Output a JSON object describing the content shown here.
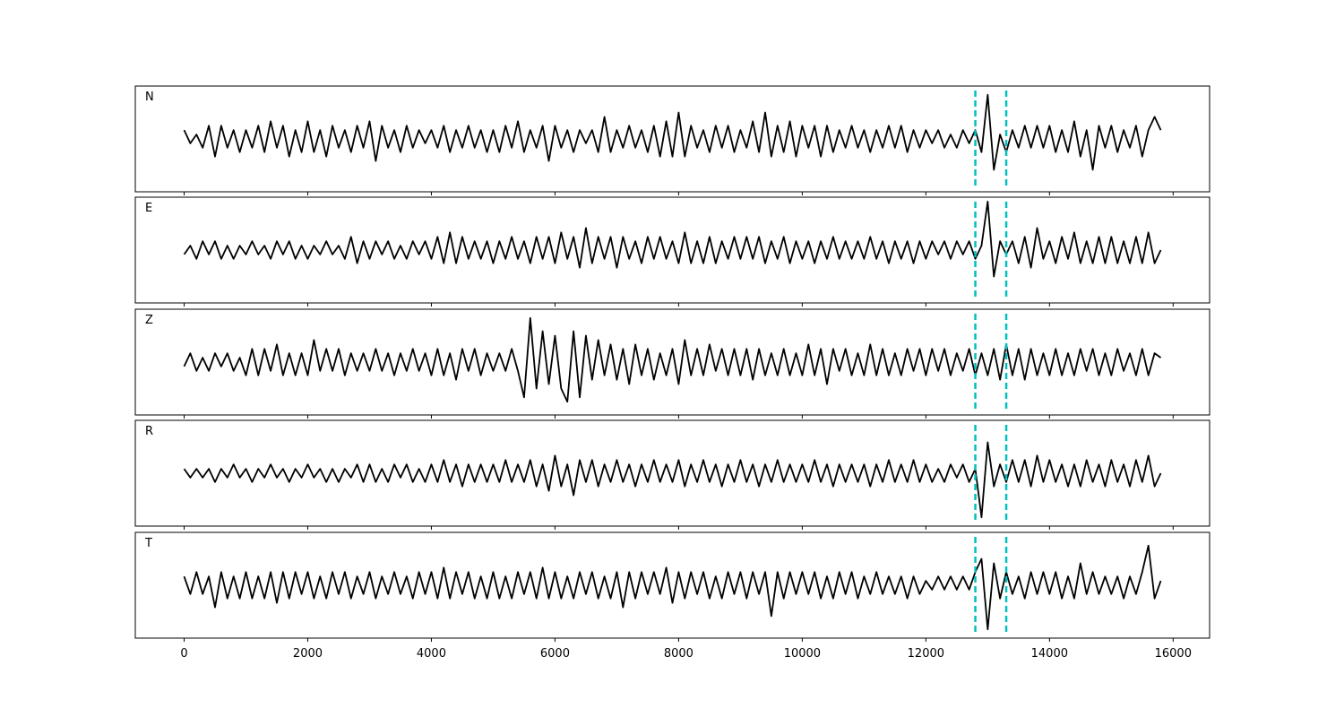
{
  "chart_data": {
    "type": "line",
    "x": [
      0,
      100,
      200,
      300,
      400,
      500,
      600,
      700,
      800,
      900,
      1000,
      1100,
      1200,
      1300,
      1400,
      1500,
      1600,
      1700,
      1800,
      1900,
      2000,
      2100,
      2200,
      2300,
      2400,
      2500,
      2600,
      2700,
      2800,
      2900,
      3000,
      3100,
      3200,
      3300,
      3400,
      3500,
      3600,
      3700,
      3800,
      3900,
      4000,
      4100,
      4200,
      4300,
      4400,
      4500,
      4600,
      4700,
      4800,
      4900,
      5000,
      5100,
      5200,
      5300,
      5400,
      5500,
      5600,
      5700,
      5800,
      5900,
      6000,
      6100,
      6200,
      6300,
      6400,
      6500,
      6600,
      6700,
      6800,
      6900,
      7000,
      7100,
      7200,
      7300,
      7400,
      7500,
      7600,
      7700,
      7800,
      7900,
      8000,
      8100,
      8200,
      8300,
      8400,
      8500,
      8600,
      8700,
      8800,
      8900,
      9000,
      9100,
      9200,
      9300,
      9400,
      9500,
      9600,
      9700,
      9800,
      9900,
      10000,
      10100,
      10200,
      10300,
      10400,
      10500,
      10600,
      10700,
      10800,
      10900,
      11000,
      11100,
      11200,
      11300,
      11400,
      11500,
      11600,
      11700,
      11800,
      11900,
      12000,
      12100,
      12200,
      12300,
      12400,
      12500,
      12600,
      12700,
      12800,
      12900,
      13000,
      13100,
      13200,
      13300,
      13400,
      13500,
      13600,
      13700,
      13800,
      13900,
      14000,
      14100,
      14200,
      14300,
      14400,
      14500,
      14600,
      14700,
      14800,
      14900,
      15000,
      15100,
      15200,
      15300,
      15400,
      15500,
      15600,
      15700,
      15800
    ],
    "series": [
      {
        "name": "N",
        "color": "#000000",
        "values": [
          0.2,
          -0.1,
          0.1,
          -0.2,
          0.3,
          -0.4,
          0.3,
          -0.2,
          0.2,
          -0.3,
          0.2,
          -0.2,
          0.3,
          -0.3,
          0.4,
          -0.2,
          0.3,
          -0.4,
          0.2,
          -0.3,
          0.4,
          -0.3,
          0.2,
          -0.4,
          0.3,
          -0.2,
          0.2,
          -0.3,
          0.3,
          -0.2,
          0.4,
          -0.5,
          0.3,
          -0.2,
          0.2,
          -0.3,
          0.3,
          -0.2,
          0.2,
          -0.1,
          0.2,
          -0.2,
          0.3,
          -0.3,
          0.2,
          -0.2,
          0.3,
          -0.2,
          0.2,
          -0.3,
          0.2,
          -0.3,
          0.3,
          -0.2,
          0.4,
          -0.3,
          0.2,
          -0.2,
          0.3,
          -0.5,
          0.3,
          -0.2,
          0.2,
          -0.3,
          0.2,
          -0.1,
          0.2,
          -0.3,
          0.5,
          -0.3,
          0.2,
          -0.2,
          0.3,
          -0.2,
          0.2,
          -0.3,
          0.3,
          -0.4,
          0.4,
          -0.4,
          0.6,
          -0.4,
          0.3,
          -0.2,
          0.2,
          -0.3,
          0.3,
          -0.2,
          0.3,
          -0.3,
          0.2,
          -0.2,
          0.4,
          -0.3,
          0.6,
          -0.4,
          0.3,
          -0.3,
          0.4,
          -0.4,
          0.3,
          -0.2,
          0.3,
          -0.4,
          0.3,
          -0.3,
          0.2,
          -0.2,
          0.3,
          -0.2,
          0.2,
          -0.3,
          0.2,
          -0.2,
          0.3,
          -0.2,
          0.3,
          -0.3,
          0.2,
          -0.2,
          0.2,
          -0.1,
          0.2,
          -0.2,
          0.1,
          -0.2,
          0.2,
          -0.1,
          0.2,
          -0.3,
          1.0,
          -0.7,
          0.1,
          -0.3,
          0.2,
          -0.2,
          0.3,
          -0.2,
          0.3,
          -0.2,
          0.3,
          -0.3,
          0.2,
          -0.3,
          0.4,
          -0.4,
          0.2,
          -0.7,
          0.3,
          -0.2,
          0.3,
          -0.3,
          0.2,
          -0.2,
          0.3,
          -0.4,
          0.2,
          0.5,
          0.2
        ]
      },
      {
        "name": "E",
        "color": "#000000",
        "values": [
          -0.1,
          0.1,
          -0.2,
          0.2,
          -0.1,
          0.2,
          -0.2,
          0.1,
          -0.2,
          0.1,
          -0.1,
          0.2,
          -0.1,
          0.1,
          -0.2,
          0.2,
          -0.1,
          0.2,
          -0.2,
          0.1,
          -0.2,
          0.1,
          -0.1,
          0.2,
          -0.1,
          0.1,
          -0.2,
          0.3,
          -0.3,
          0.2,
          -0.2,
          0.2,
          -0.1,
          0.2,
          -0.2,
          0.1,
          -0.2,
          0.2,
          -0.1,
          0.2,
          -0.2,
          0.3,
          -0.3,
          0.4,
          -0.3,
          0.3,
          -0.2,
          0.2,
          -0.2,
          0.2,
          -0.3,
          0.2,
          -0.2,
          0.3,
          -0.2,
          0.2,
          -0.3,
          0.3,
          -0.2,
          0.3,
          -0.3,
          0.4,
          -0.2,
          0.3,
          -0.4,
          0.5,
          -0.3,
          0.3,
          -0.2,
          0.3,
          -0.4,
          0.3,
          -0.2,
          0.2,
          -0.3,
          0.3,
          -0.2,
          0.3,
          -0.2,
          0.2,
          -0.3,
          0.4,
          -0.3,
          0.2,
          -0.3,
          0.3,
          -0.3,
          0.2,
          -0.2,
          0.3,
          -0.2,
          0.3,
          -0.2,
          0.3,
          -0.3,
          0.2,
          -0.2,
          0.3,
          -0.3,
          0.2,
          -0.2,
          0.2,
          -0.3,
          0.2,
          -0.2,
          0.3,
          -0.2,
          0.2,
          -0.2,
          0.2,
          -0.2,
          0.3,
          -0.2,
          0.2,
          -0.3,
          0.2,
          -0.2,
          0.2,
          -0.3,
          0.2,
          -0.2,
          0.2,
          -0.1,
          0.2,
          -0.2,
          0.2,
          -0.1,
          0.2,
          -0.2,
          0.1,
          1.1,
          -0.6,
          0.2,
          -0.1,
          0.2,
          -0.3,
          0.3,
          -0.4,
          0.5,
          -0.2,
          0.2,
          -0.3,
          0.3,
          -0.2,
          0.4,
          -0.3,
          0.2,
          -0.3,
          0.3,
          -0.3,
          0.3,
          -0.3,
          0.2,
          -0.3,
          0.3,
          -0.3,
          0.4,
          -0.3,
          0.0
        ]
      },
      {
        "name": "Z",
        "color": "#000000",
        "values": [
          -0.1,
          0.2,
          -0.2,
          0.1,
          -0.2,
          0.2,
          -0.1,
          0.2,
          -0.2,
          0.1,
          -0.3,
          0.3,
          -0.3,
          0.3,
          -0.2,
          0.4,
          -0.3,
          0.2,
          -0.3,
          0.2,
          -0.3,
          0.5,
          -0.2,
          0.3,
          -0.2,
          0.3,
          -0.3,
          0.2,
          -0.2,
          0.2,
          -0.2,
          0.3,
          -0.2,
          0.2,
          -0.3,
          0.2,
          -0.2,
          0.3,
          -0.2,
          0.2,
          -0.3,
          0.3,
          -0.3,
          0.2,
          -0.4,
          0.3,
          -0.2,
          0.3,
          -0.3,
          0.2,
          -0.2,
          0.2,
          -0.2,
          0.3,
          -0.2,
          -0.8,
          1.0,
          -0.6,
          0.7,
          -0.5,
          0.6,
          -0.6,
          -0.9,
          0.7,
          -0.8,
          0.6,
          -0.4,
          0.5,
          -0.3,
          0.4,
          -0.4,
          0.3,
          -0.5,
          0.4,
          -0.3,
          0.3,
          -0.4,
          0.2,
          -0.3,
          0.3,
          -0.5,
          0.5,
          -0.3,
          0.3,
          -0.3,
          0.4,
          -0.2,
          0.3,
          -0.3,
          0.3,
          -0.3,
          0.3,
          -0.4,
          0.3,
          -0.3,
          0.2,
          -0.3,
          0.3,
          -0.3,
          0.2,
          -0.3,
          0.4,
          -0.3,
          0.3,
          -0.5,
          0.3,
          -0.2,
          0.3,
          -0.3,
          0.2,
          -0.3,
          0.4,
          -0.3,
          0.3,
          -0.3,
          0.2,
          -0.3,
          0.3,
          -0.2,
          0.3,
          -0.3,
          0.3,
          -0.2,
          0.3,
          -0.3,
          0.2,
          -0.2,
          0.3,
          -0.3,
          0.2,
          -0.3,
          0.3,
          -0.4,
          0.4,
          -0.3,
          0.3,
          -0.4,
          0.3,
          -0.3,
          0.2,
          -0.3,
          0.3,
          -0.3,
          0.2,
          -0.3,
          0.3,
          -0.2,
          0.3,
          -0.3,
          0.2,
          -0.3,
          0.3,
          -0.2,
          0.2,
          -0.3,
          0.3,
          -0.3,
          0.2,
          0.1
        ]
      },
      {
        "name": "R",
        "color": "#000000",
        "values": [
          0.1,
          -0.1,
          0.1,
          -0.1,
          0.1,
          -0.2,
          0.1,
          -0.1,
          0.2,
          -0.1,
          0.1,
          -0.2,
          0.1,
          -0.1,
          0.2,
          -0.1,
          0.1,
          -0.2,
          0.1,
          -0.1,
          0.2,
          -0.1,
          0.1,
          -0.2,
          0.1,
          -0.2,
          0.1,
          -0.1,
          0.2,
          -0.2,
          0.2,
          -0.2,
          0.1,
          -0.2,
          0.2,
          -0.1,
          0.2,
          -0.2,
          0.1,
          -0.2,
          0.2,
          -0.2,
          0.3,
          -0.2,
          0.2,
          -0.3,
          0.2,
          -0.2,
          0.2,
          -0.2,
          0.2,
          -0.2,
          0.3,
          -0.2,
          0.2,
          -0.2,
          0.3,
          -0.3,
          0.2,
          -0.4,
          0.4,
          -0.3,
          0.2,
          -0.5,
          0.3,
          -0.2,
          0.3,
          -0.3,
          0.2,
          -0.2,
          0.3,
          -0.2,
          0.2,
          -0.3,
          0.2,
          -0.2,
          0.3,
          -0.2,
          0.2,
          -0.2,
          0.3,
          -0.3,
          0.2,
          -0.2,
          0.3,
          -0.2,
          0.2,
          -0.3,
          0.2,
          -0.2,
          0.3,
          -0.2,
          0.2,
          -0.3,
          0.2,
          -0.2,
          0.3,
          -0.2,
          0.2,
          -0.2,
          0.2,
          -0.2,
          0.3,
          -0.2,
          0.2,
          -0.3,
          0.2,
          -0.2,
          0.2,
          -0.2,
          0.2,
          -0.3,
          0.2,
          -0.2,
          0.3,
          -0.2,
          0.2,
          -0.2,
          0.3,
          -0.2,
          0.2,
          -0.2,
          0.1,
          -0.2,
          0.2,
          -0.1,
          0.2,
          -0.2,
          0.1,
          -1.0,
          0.7,
          -0.3,
          0.2,
          -0.2,
          0.3,
          -0.2,
          0.3,
          -0.3,
          0.4,
          -0.2,
          0.3,
          -0.2,
          0.2,
          -0.3,
          0.2,
          -0.3,
          0.3,
          -0.2,
          0.2,
          -0.3,
          0.3,
          -0.2,
          0.2,
          -0.3,
          0.3,
          -0.2,
          0.4,
          -0.3,
          0.0
        ]
      },
      {
        "name": "T",
        "color": "#000000",
        "values": [
          0.2,
          -0.2,
          0.3,
          -0.2,
          0.2,
          -0.5,
          0.3,
          -0.3,
          0.2,
          -0.3,
          0.3,
          -0.3,
          0.2,
          -0.3,
          0.3,
          -0.4,
          0.3,
          -0.3,
          0.3,
          -0.2,
          0.3,
          -0.3,
          0.2,
          -0.3,
          0.3,
          -0.2,
          0.3,
          -0.3,
          0.2,
          -0.2,
          0.3,
          -0.3,
          0.2,
          -0.2,
          0.3,
          -0.2,
          0.2,
          -0.3,
          0.3,
          -0.2,
          0.3,
          -0.3,
          0.4,
          -0.3,
          0.3,
          -0.2,
          0.3,
          -0.3,
          0.2,
          -0.3,
          0.3,
          -0.3,
          0.2,
          -0.3,
          0.3,
          -0.2,
          0.3,
          -0.3,
          0.4,
          -0.3,
          0.3,
          -0.3,
          0.2,
          -0.3,
          0.3,
          -0.2,
          0.3,
          -0.3,
          0.2,
          -0.3,
          0.3,
          -0.5,
          0.3,
          -0.3,
          0.3,
          -0.2,
          0.3,
          -0.2,
          0.4,
          -0.4,
          0.3,
          -0.3,
          0.3,
          -0.2,
          0.3,
          -0.3,
          0.2,
          -0.3,
          0.3,
          -0.2,
          0.3,
          -0.3,
          0.3,
          -0.2,
          0.3,
          -0.7,
          0.3,
          -0.3,
          0.3,
          -0.2,
          0.3,
          -0.2,
          0.3,
          -0.3,
          0.2,
          -0.3,
          0.3,
          -0.2,
          0.3,
          -0.3,
          0.2,
          -0.2,
          0.3,
          -0.2,
          0.2,
          -0.2,
          0.2,
          -0.3,
          0.2,
          -0.2,
          0.1,
          -0.1,
          0.2,
          -0.1,
          0.2,
          -0.1,
          0.2,
          -0.1,
          0.3,
          0.6,
          -1.0,
          0.5,
          -0.3,
          0.3,
          -0.2,
          0.2,
          -0.3,
          0.3,
          -0.2,
          0.3,
          -0.2,
          0.3,
          -0.3,
          0.2,
          -0.3,
          0.5,
          -0.2,
          0.3,
          -0.2,
          0.2,
          -0.2,
          0.2,
          -0.3,
          0.2,
          -0.2,
          0.3,
          0.9,
          -0.3,
          0.1
        ]
      }
    ],
    "xlim": [
      -790,
      16590
    ],
    "ylim": [
      -1.2,
      1.2
    ],
    "xticks": [
      0,
      2000,
      4000,
      6000,
      8000,
      10000,
      12000,
      14000,
      16000
    ],
    "vlines": [
      12800,
      13300
    ],
    "vline_color": "#00bfbf",
    "vline_style": "dashed"
  }
}
